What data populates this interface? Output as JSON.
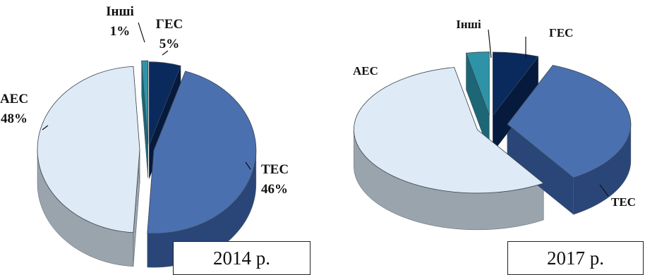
{
  "chart_data": [
    {
      "type": "pie",
      "title": "",
      "categories": [
        "ГЕС",
        "ТЕС",
        "АЕС",
        "Інші"
      ],
      "values": [
        5,
        46,
        48,
        1
      ],
      "labels": [
        {
          "name": "ГЕС",
          "value_text": "5%"
        },
        {
          "name": "ТЕС",
          "value_text": "46%"
        },
        {
          "name": "АЕС",
          "value_text": "48%"
        },
        {
          "name": "Інші",
          "value_text": "1%"
        }
      ],
      "caption": "2014 р.",
      "colors": [
        "#0a2a5e",
        "#4a70b0",
        "#dfeaf7",
        "#2f93a8"
      ]
    },
    {
      "type": "pie",
      "title": "",
      "categories": [
        "ГЕС",
        "ТЕС",
        "АЕС",
        "Інші"
      ],
      "values": [
        6,
        35,
        56,
        3
      ],
      "labels": [
        {
          "name": "ГЕС",
          "value_text": ""
        },
        {
          "name": "ТЕС",
          "value_text": ""
        },
        {
          "name": "АЕС",
          "value_text": ""
        },
        {
          "name": "Інші",
          "value_text": ""
        }
      ],
      "caption": "2017 р.",
      "colors": [
        "#0a2a5e",
        "#4a70b0",
        "#dfeaf7",
        "#2f93a8"
      ]
    }
  ]
}
